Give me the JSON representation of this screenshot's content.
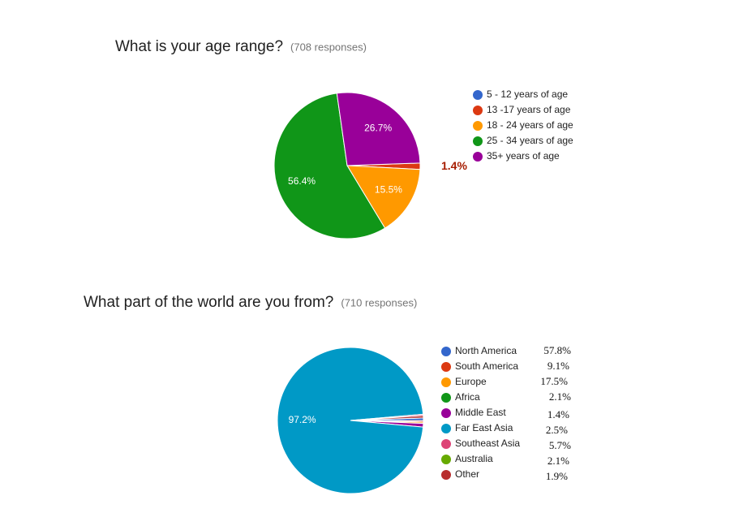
{
  "chart_data": [
    {
      "type": "pie",
      "title": "What is your age range?",
      "subtitle": "(708 responses)",
      "categories": [
        "5 - 12 years of age",
        "13 -17 years of age",
        "18 - 24 years of age",
        "25 - 34 years of age",
        "35+ years of age"
      ],
      "values": [
        0,
        1.4,
        15.5,
        56.4,
        26.7
      ],
      "value_labels": [
        null,
        "1.4%",
        "15.5%",
        "56.4%",
        "26.7%"
      ],
      "colors": [
        "#3366cc",
        "#dc3912",
        "#ff9900",
        "#109618",
        "#990099"
      ]
    },
    {
      "type": "pie",
      "title": "What part of the world are you from?",
      "subtitle": "(710 responses)",
      "categories": [
        "North America",
        "South America",
        "Europe",
        "Africa",
        "Middle East",
        "Far East Asia",
        "Southeast Asia",
        "Australia",
        "Other"
      ],
      "values": [
        0.6,
        0.3,
        0.3,
        0,
        0.8,
        97.2,
        0.3,
        0,
        0.5
      ],
      "value_labels": [
        null,
        null,
        null,
        null,
        null,
        "97.2%",
        null,
        null,
        null
      ],
      "colors": [
        "#3366cc",
        "#dc3912",
        "#ff9900",
        "#109618",
        "#990099",
        "#0099c6",
        "#dd4477",
        "#66aa00",
        "#b82e2e"
      ],
      "annotations": [
        "57.8%",
        "9.1%",
        "17.5%",
        "2.1%",
        "1.4%",
        "2.5%",
        "5.7%",
        "2.1%",
        "1.9%"
      ]
    }
  ]
}
